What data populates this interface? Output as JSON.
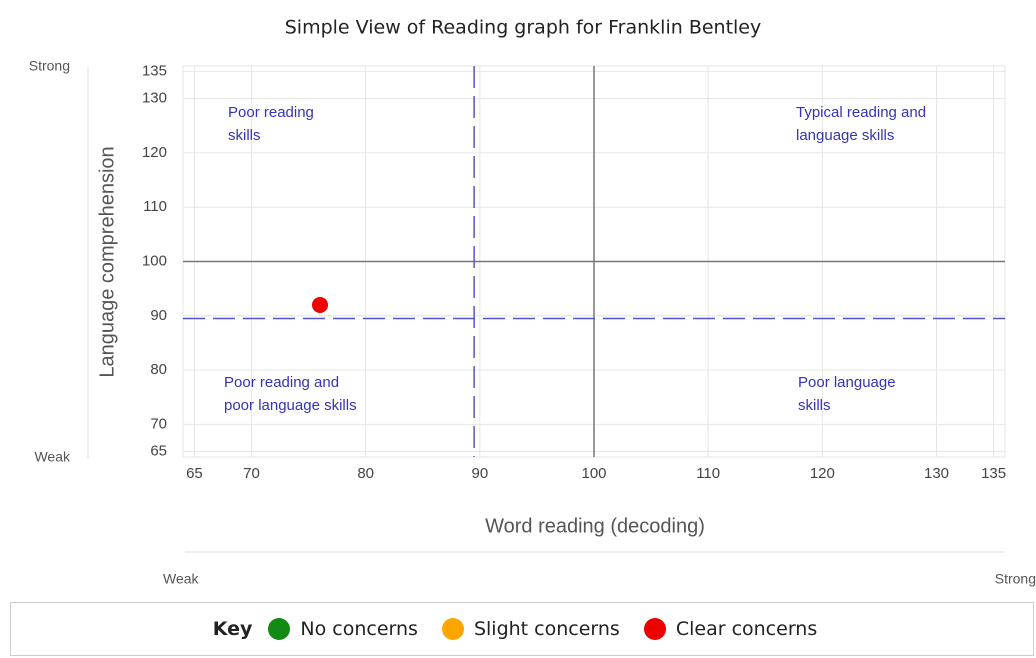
{
  "chart_data": {
    "type": "scatter",
    "title": "Simple View of Reading graph for Franklin Bentley",
    "x_label": "Word reading (decoding)",
    "y_label": "Language comprehension",
    "xlim": [
      64,
      136
    ],
    "ylim": [
      64,
      136
    ],
    "xticks": [
      65,
      70,
      80,
      90,
      100,
      110,
      120,
      130,
      135
    ],
    "yticks": [
      65,
      70,
      80,
      90,
      100,
      110,
      120,
      130,
      135
    ],
    "grid": true,
    "thresholds": {
      "x": 89.5,
      "y": 89.5
    },
    "reference": {
      "x": 100,
      "y": 100
    },
    "annotations": [
      [
        "Poor reading",
        "skills"
      ],
      [
        "Typical reading and",
        "language skills"
      ],
      [
        "Poor reading and",
        "poor language skills"
      ],
      [
        "Poor language",
        "skills"
      ]
    ],
    "y_strength": [
      "Strong",
      "Weak"
    ],
    "x_strength": [
      "Weak",
      "Strong"
    ],
    "legend_title": "Key",
    "series": [
      {
        "name": "No concerns",
        "color": "#138a13",
        "x": [],
        "values": []
      },
      {
        "name": "Slight concerns",
        "color": "#ffa500",
        "x": [],
        "values": []
      },
      {
        "name": "Clear concerns",
        "color": "#ee0000",
        "x": [
          76
        ],
        "values": [
          92
        ]
      }
    ]
  }
}
